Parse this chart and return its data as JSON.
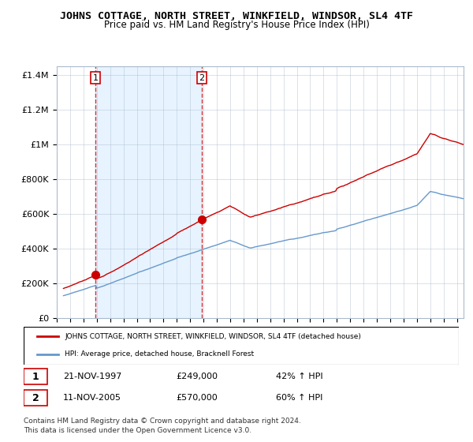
{
  "title": "JOHNS COTTAGE, NORTH STREET, WINKFIELD, WINDSOR, SL4 4TF",
  "subtitle": "Price paid vs. HM Land Registry's House Price Index (HPI)",
  "sale1_date": 1997.89,
  "sale1_price": 249000,
  "sale1_label": "1",
  "sale2_date": 2005.87,
  "sale2_price": 570000,
  "sale2_label": "2",
  "legend_red": "JOHNS COTTAGE, NORTH STREET, WINKFIELD, WINDSOR, SL4 4TF (detached house)",
  "legend_blue": "HPI: Average price, detached house, Bracknell Forest",
  "table_rows": [
    [
      "1",
      "21-NOV-1997",
      "£249,000",
      "42% ↑ HPI"
    ],
    [
      "2",
      "11-NOV-2005",
      "£570,000",
      "60% ↑ HPI"
    ]
  ],
  "footnote1": "Contains HM Land Registry data © Crown copyright and database right 2024.",
  "footnote2": "This data is licensed under the Open Government Licence v3.0.",
  "red_line_color": "#cc0000",
  "blue_line_color": "#6699cc",
  "shade_color": "#ddeeff",
  "grid_color": "#aabbcc",
  "bg_color": "#ffffff",
  "ylim": [
    0,
    1450000
  ],
  "xlim_start": 1995.5,
  "xlim_end": 2025.5
}
